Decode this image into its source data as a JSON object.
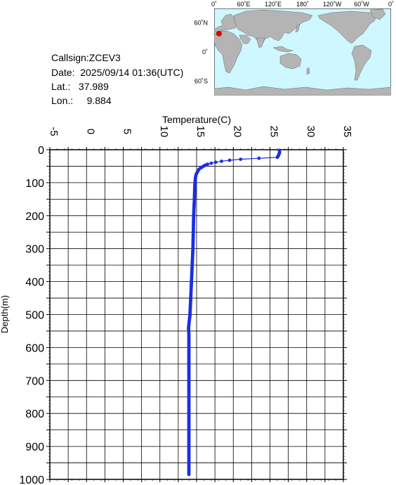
{
  "info": {
    "callsign": "Callsign:ZCEV3",
    "date": "Date:  2025/09/14 01:36(UTC)",
    "lat": "Lat.:   37.989",
    "lon": "Lon.:     9.884"
  },
  "map": {
    "lon_labels": [
      "0˚",
      "60˚E",
      "120˚E",
      "180˚",
      "120˚W",
      "60˚W",
      "0˚"
    ],
    "lat_labels": [
      "60˚N",
      "0˚",
      "60˚S"
    ],
    "ocean_color": "#cff7ff",
    "land_color": "#b4b4b4",
    "marker_color": "#e00000",
    "marker": {
      "lat": 37.989,
      "lon": 9.884
    }
  },
  "chart_data": {
    "type": "line",
    "xlabel": "Temperature(C)",
    "ylabel": "Depth(m)",
    "xlim": [
      -5,
      35
    ],
    "ylim": [
      0,
      1000
    ],
    "y_inverted": true,
    "x_axis_position": "top",
    "grid": true,
    "xticks": [
      "-5",
      "0",
      "5",
      "10",
      "15",
      "20",
      "25",
      "30",
      "35"
    ],
    "yticks": [
      "0",
      "100",
      "200",
      "300",
      "400",
      "500",
      "600",
      "700",
      "800",
      "900",
      "1000"
    ],
    "line_color": "#1a2ee6",
    "series": [
      {
        "points": [
          [
            26.3,
            2
          ],
          [
            26.3,
            5
          ],
          [
            26.3,
            10
          ],
          [
            26.2,
            15
          ],
          [
            26.1,
            20
          ],
          [
            26.0,
            23
          ],
          [
            23.5,
            26
          ],
          [
            21.0,
            29
          ],
          [
            19.5,
            32
          ],
          [
            18.4,
            35
          ],
          [
            17.6,
            38
          ],
          [
            17.0,
            41
          ],
          [
            16.5,
            44
          ],
          [
            16.1,
            48
          ],
          [
            15.8,
            52
          ],
          [
            15.5,
            56
          ],
          [
            15.3,
            60
          ],
          [
            15.2,
            64
          ],
          [
            15.1,
            68
          ],
          [
            15.0,
            72
          ],
          [
            14.9,
            78
          ],
          [
            14.85,
            85
          ],
          [
            14.8,
            95
          ],
          [
            14.75,
            110
          ],
          [
            14.7,
            150
          ],
          [
            14.6,
            200
          ],
          [
            14.55,
            250
          ],
          [
            14.5,
            300
          ],
          [
            14.4,
            350
          ],
          [
            14.3,
            400
          ],
          [
            14.2,
            450
          ],
          [
            14.1,
            500
          ],
          [
            14.0,
            520
          ],
          [
            13.9,
            540
          ],
          [
            13.95,
            560
          ],
          [
            13.95,
            600
          ],
          [
            13.95,
            700
          ],
          [
            13.95,
            800
          ],
          [
            13.95,
            900
          ],
          [
            13.95,
            985
          ]
        ]
      }
    ]
  }
}
